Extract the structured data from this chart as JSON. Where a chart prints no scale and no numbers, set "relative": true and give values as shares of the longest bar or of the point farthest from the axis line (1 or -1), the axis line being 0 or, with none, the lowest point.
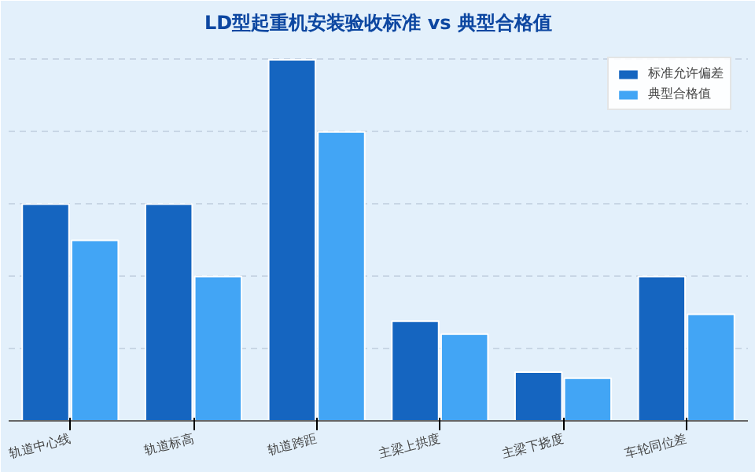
{
  "chart_data": {
    "type": "bar",
    "title": "LD型起重机安装验收标准 vs 典型合格值",
    "relative": true,
    "categories": [
      "轨道中心线",
      "轨道标高",
      "轨道跨距",
      "主梁上拱度",
      "主梁下挠度",
      "车轮同位差"
    ],
    "series": [
      {
        "name": "标准允许偏差",
        "color": "#1565c0",
        "values": [
          0.6,
          0.6,
          1,
          0.276,
          0.135,
          0.4
        ]
      },
      {
        "name": "典型合格值",
        "color": "#42a5f5",
        "values": [
          0.5,
          0.4,
          0.8,
          0.24,
          0.118,
          0.295
        ]
      }
    ],
    "grid": "y",
    "legend": "top right"
  }
}
